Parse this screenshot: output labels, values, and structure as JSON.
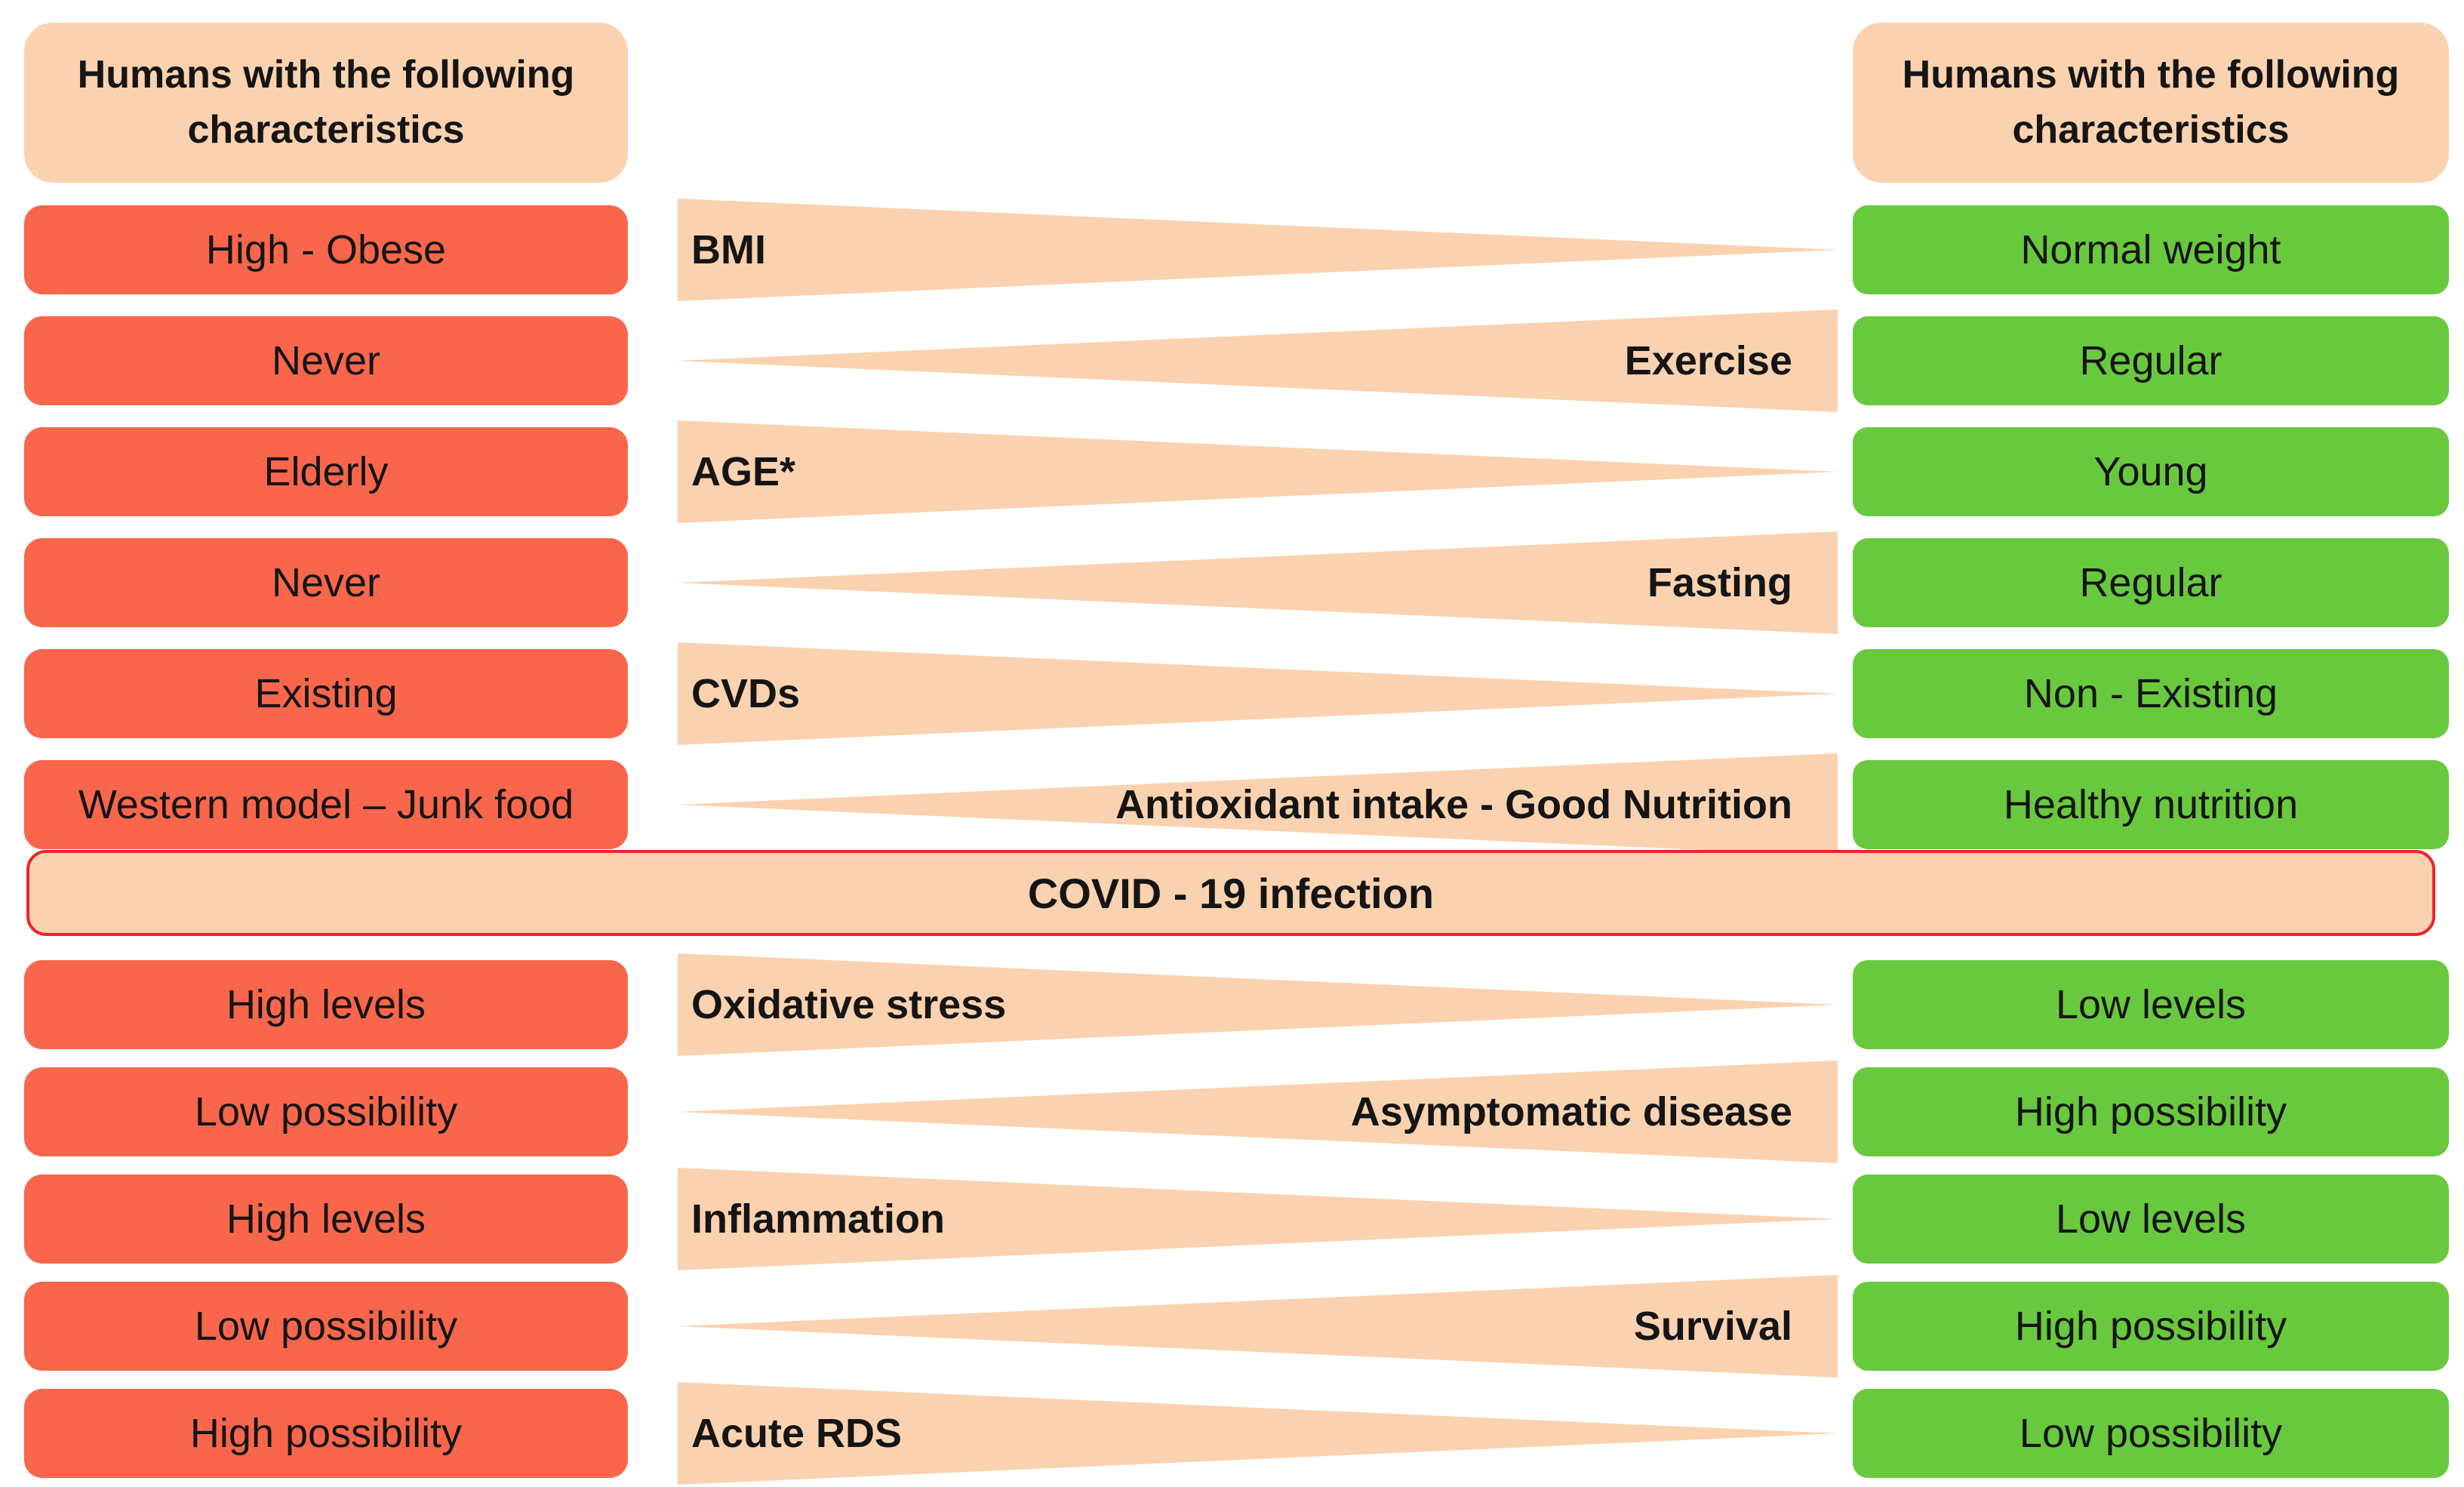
{
  "title": "COVID - 19 infection risk and protective characteristics diagram",
  "colors": {
    "risk_box": "#f9664c",
    "protective_box": "#69c93e",
    "wedge_and_headers": "#fbd2b0",
    "covid_banner_border": "#e9262b",
    "text": "#151515",
    "background": "#ffffff"
  },
  "header_left": {
    "text": "Humans with the following characteristics"
  },
  "header_right": {
    "text": "Humans with the following characteristics"
  },
  "covid_banner": {
    "text": "COVID - 19 infection"
  },
  "rows": [
    {
      "left": "High - Obese",
      "factor": "BMI",
      "thick_end": "left",
      "right": "Normal weight",
      "section": "before-infection"
    },
    {
      "left": "Never",
      "factor": "Exercise",
      "thick_end": "right",
      "right": "Regular",
      "section": "before-infection"
    },
    {
      "left": "Elderly",
      "factor": "AGE*",
      "thick_end": "left",
      "right": "Young",
      "section": "before-infection"
    },
    {
      "left": "Never",
      "factor": "Fasting",
      "thick_end": "right",
      "right": "Regular",
      "section": "before-infection"
    },
    {
      "left": "Existing",
      "factor": "CVDs",
      "thick_end": "left",
      "right": "Non - Existing",
      "section": "before-infection"
    },
    {
      "left": "Western model – Junk food",
      "factor": "Antioxidant intake - Good Nutrition",
      "thick_end": "right",
      "right": "Healthy nutrition",
      "section": "before-infection"
    },
    {
      "left": "High levels",
      "factor": "Oxidative stress",
      "thick_end": "left",
      "right": "Low levels",
      "section": "after-infection"
    },
    {
      "left": "Low possibility",
      "factor": "Asymptomatic disease",
      "thick_end": "right",
      "right": "High possibility",
      "section": "after-infection"
    },
    {
      "left": "High levels",
      "factor": "Inflammation",
      "thick_end": "left",
      "right": "Low levels",
      "section": "after-infection"
    },
    {
      "left": "Low possibility",
      "factor": "Survival",
      "thick_end": "right",
      "right": "High possibility",
      "section": "after-infection"
    },
    {
      "left": "High possibility",
      "factor": "Acute RDS",
      "thick_end": "left",
      "right": "Low possibility",
      "section": "after-infection"
    }
  ]
}
